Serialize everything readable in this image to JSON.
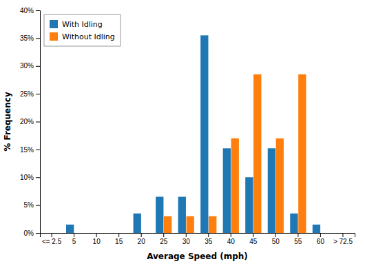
{
  "chart_data": {
    "type": "bar",
    "xlabel": "Average Speed (mph)",
    "ylabel": "% Frequency",
    "categories": [
      "<= 2.5",
      "5",
      "10",
      "15",
      "20",
      "25",
      "30",
      "35",
      "40",
      "45",
      "50",
      "55",
      "60",
      "> 72.5"
    ],
    "series": [
      {
        "name": "With Idling",
        "values": [
          0,
          1.5,
          0,
          0,
          3.5,
          6.5,
          6.5,
          35.5,
          15.2,
          10.0,
          15.2,
          3.5,
          1.5,
          0
        ]
      },
      {
        "name": "Without Idling",
        "values": [
          0,
          0,
          0,
          0,
          0,
          3.0,
          3.0,
          3.0,
          17.0,
          28.5,
          17.0,
          28.5,
          0,
          0
        ]
      }
    ],
    "ylim": [
      0,
      40
    ],
    "yticks": [
      {
        "value": 0,
        "label": "0%"
      },
      {
        "value": 5,
        "label": "5%"
      },
      {
        "value": 10,
        "label": "10%"
      },
      {
        "value": 15,
        "label": "15%"
      },
      {
        "value": 20,
        "label": "20%"
      },
      {
        "value": 25,
        "label": "25%"
      },
      {
        "value": 30,
        "label": "30%"
      },
      {
        "value": 35,
        "label": "35%"
      },
      {
        "value": 40,
        "label": "40%"
      }
    ],
    "grid": false,
    "legend": "upper left"
  }
}
